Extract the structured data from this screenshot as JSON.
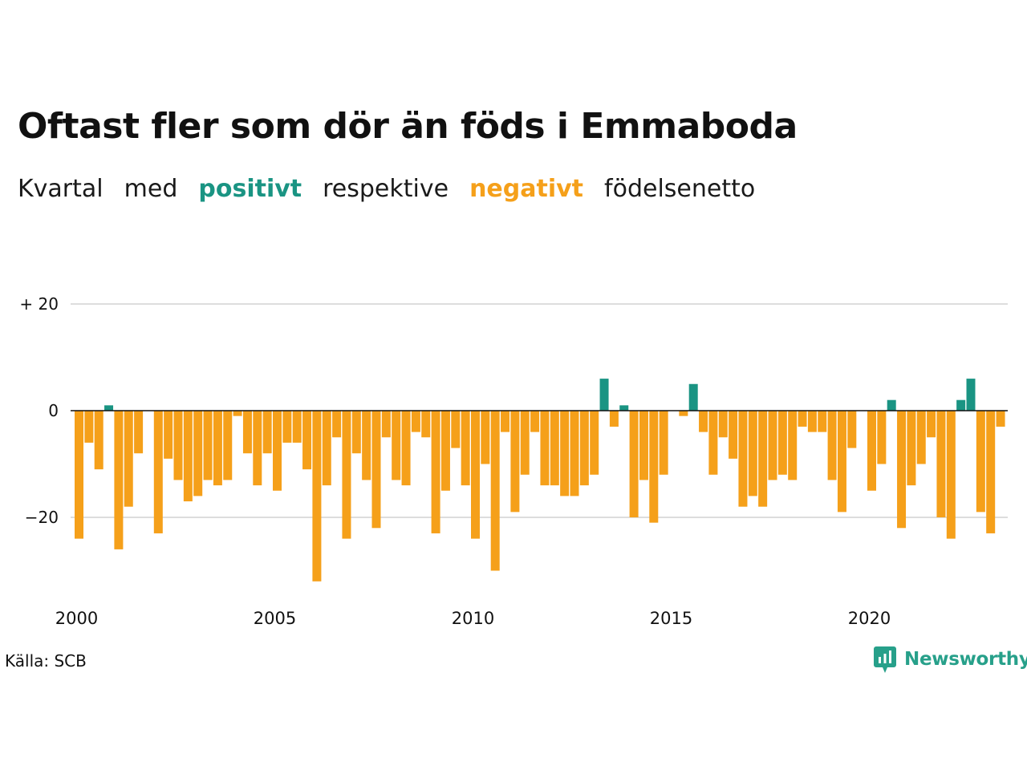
{
  "title": "Oftast fler som dör än föds i Emmaboda",
  "subtitle": {
    "w1": "Kvartal",
    "w2": "med",
    "positive": "positivt",
    "w3": "respektive",
    "negative": "negativt",
    "w4": "födelsenetto"
  },
  "source": "Källa: SCB",
  "logo": {
    "text": "Newsworthy",
    "icon": "newsworthy-chart-icon"
  },
  "colors": {
    "positive": "#1a9483",
    "negative": "#f5a01a",
    "grid": "#dddddd",
    "zero": "#111111"
  },
  "chart_data": {
    "type": "bar",
    "x_start": "2000 Q1",
    "interval": "quarter",
    "values": [
      -24,
      -6,
      -11,
      1,
      -26,
      -18,
      -8,
      0,
      -23,
      -9,
      -13,
      -17,
      -16,
      -13,
      -14,
      -13,
      -1,
      -8,
      -14,
      -8,
      -15,
      -6,
      -6,
      -11,
      -32,
      -14,
      -5,
      -24,
      -8,
      -13,
      -22,
      -5,
      -13,
      -14,
      -4,
      -5,
      -23,
      -15,
      -7,
      -14,
      -24,
      -10,
      -30,
      -4,
      -19,
      -12,
      -4,
      -14,
      -14,
      -16,
      -16,
      -14,
      -12,
      6,
      -3,
      1,
      -20,
      -13,
      -21,
      -12,
      0,
      -1,
      5,
      -4,
      -12,
      -5,
      -9,
      -18,
      -16,
      -18,
      -13,
      -12,
      -13,
      -3,
      -4,
      -4,
      -13,
      -19,
      -7,
      0,
      -15,
      -10,
      2,
      -22,
      -14,
      -10,
      -5,
      -20,
      -24,
      2,
      6,
      -19,
      -23,
      -3
    ],
    "y_ticks": [
      20,
      0,
      -20
    ],
    "y_tick_labels": [
      "+ 20",
      "0",
      "−20"
    ],
    "x_ticks": [
      "2000",
      "2005",
      "2010",
      "2015",
      "2020"
    ],
    "ylim": [
      -34,
      20
    ],
    "grid": true
  }
}
